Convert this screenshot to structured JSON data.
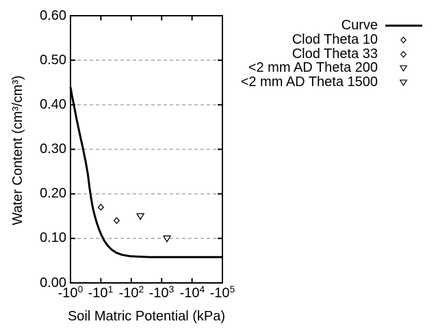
{
  "colors": {
    "foreground": "#000000",
    "background": "#ffffff",
    "gridline": "#a8a8a8"
  },
  "axes": {
    "x": {
      "label": "Soil Matric Potential (kPa)",
      "ticks": [
        {
          "base": "-10",
          "exp": "0"
        },
        {
          "base": "-10",
          "exp": "1"
        },
        {
          "base": "-10",
          "exp": "2"
        },
        {
          "base": "-10",
          "exp": "3"
        },
        {
          "base": "-10",
          "exp": "4"
        },
        {
          "base": "-10",
          "exp": "5"
        }
      ]
    },
    "y": {
      "label": "Water Content (cm³/cm³)",
      "ticks": [
        "0.60",
        "0.50",
        "0.40",
        "0.30",
        "0.20",
        "0.10",
        "0.00"
      ]
    }
  },
  "legend": {
    "items": [
      {
        "label": "Curve",
        "marker": "line"
      },
      {
        "label": "Clod Theta 10",
        "marker": "open-diamond"
      },
      {
        "label": "Clod Theta 33",
        "marker": "open-diamond"
      },
      {
        "label": "<2 mm AD Theta 200",
        "marker": "open-triangle-down"
      },
      {
        "label": "<2 mm AD Theta 1500",
        "marker": "open-triangle-down"
      }
    ]
  },
  "chart_data": {
    "type": "line",
    "title": "",
    "xlabel": "Soil Matric Potential (kPa)",
    "ylabel": "Water Content (cm³/cm³)",
    "x_scale": "negative-log10-kPa",
    "xlim_log10_abs_kPa": [
      0,
      5
    ],
    "x_tick_labels": [
      "-10^0",
      "-10^1",
      "-10^2",
      "-10^3",
      "-10^4",
      "-10^5"
    ],
    "ylim": [
      0,
      0.6
    ],
    "y_tick_labels": [
      "0.00",
      "0.10",
      "0.20",
      "0.30",
      "0.40",
      "0.50",
      "0.60"
    ],
    "grid": "horizontal dashed gridlines at 0.10 intervals",
    "legend_position": "outside upper-right",
    "series": [
      {
        "name": "Curve",
        "type": "line",
        "marker": "none",
        "x_unit": "log10(|kPa|)",
        "points": [
          [
            0.0,
            0.44
          ],
          [
            0.05,
            0.42
          ],
          [
            0.11,
            0.4
          ],
          [
            0.2,
            0.368
          ],
          [
            0.3,
            0.336
          ],
          [
            0.4,
            0.305
          ],
          [
            0.5,
            0.272
          ],
          [
            0.57,
            0.245
          ],
          [
            0.63,
            0.212
          ],
          [
            0.68,
            0.19
          ],
          [
            0.73,
            0.17
          ],
          [
            0.79,
            0.153
          ],
          [
            0.86,
            0.136
          ],
          [
            0.93,
            0.122
          ],
          [
            1.0,
            0.11
          ],
          [
            1.1,
            0.096
          ],
          [
            1.22,
            0.084
          ],
          [
            1.35,
            0.075
          ],
          [
            1.5,
            0.068
          ],
          [
            1.7,
            0.063
          ],
          [
            1.95,
            0.06
          ],
          [
            2.2,
            0.059
          ],
          [
            2.6,
            0.058
          ],
          [
            3.0,
            0.058
          ],
          [
            4.0,
            0.058
          ],
          [
            5.0,
            0.058
          ]
        ]
      },
      {
        "name": "Clod Theta 10",
        "type": "scatter",
        "marker": "open-diamond",
        "x_unit": "kPa",
        "points": [
          [
            -10,
            0.17
          ]
        ]
      },
      {
        "name": "Clod Theta 33",
        "type": "scatter",
        "marker": "open-diamond",
        "x_unit": "kPa",
        "points": [
          [
            -33,
            0.14
          ]
        ]
      },
      {
        "name": "<2 mm AD Theta 200",
        "type": "scatter",
        "marker": "open-triangle-down",
        "x_unit": "kPa",
        "points": [
          [
            -200,
            0.15
          ]
        ]
      },
      {
        "name": "<2 mm AD Theta 1500",
        "type": "scatter",
        "marker": "open-triangle-down",
        "x_unit": "kPa",
        "points": [
          [
            -1500,
            0.1
          ]
        ]
      }
    ]
  }
}
